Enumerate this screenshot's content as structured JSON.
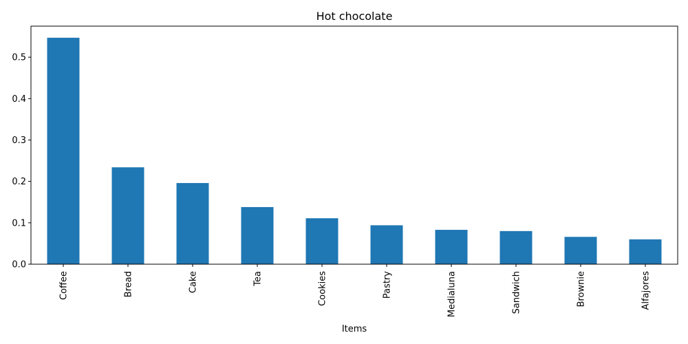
{
  "chart_data": {
    "type": "bar",
    "title": "Hot chocolate",
    "xlabel": "Items",
    "ylabel": "",
    "categories": [
      "Coffee",
      "Bread",
      "Cake",
      "Tea",
      "Cookies",
      "Pastry",
      "Medialuna",
      "Sandwich",
      "Brownie",
      "Alfajores"
    ],
    "values": [
      0.547,
      0.234,
      0.196,
      0.138,
      0.111,
      0.094,
      0.083,
      0.08,
      0.066,
      0.06
    ],
    "ylim": [
      0,
      0.575
    ],
    "yticks": [
      "0.0",
      "0.1",
      "0.2",
      "0.3",
      "0.4",
      "0.5"
    ],
    "bar_color": "#1f77b4",
    "grid": false,
    "legend": "none"
  }
}
